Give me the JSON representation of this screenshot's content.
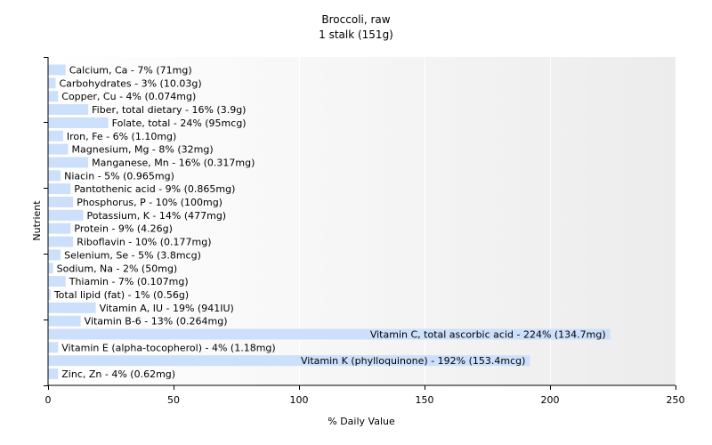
{
  "chart_data": {
    "type": "bar",
    "orientation": "horizontal",
    "title": "Broccoli, raw",
    "subtitle": "1 stalk (151g)",
    "xlabel": "% Daily Value",
    "ylabel": "Nutrient",
    "xlim": [
      0,
      250
    ],
    "xticks": [
      0,
      50,
      100,
      150,
      200,
      250
    ],
    "grid": "vertical",
    "bar_color": "#cce0fb",
    "categories": [
      "Calcium, Ca",
      "Carbohydrates",
      "Copper, Cu",
      "Fiber, total dietary",
      "Folate, total",
      "Iron, Fe",
      "Magnesium, Mg",
      "Manganese, Mn",
      "Niacin",
      "Pantothenic acid",
      "Phosphorus, P",
      "Potassium, K",
      "Protein",
      "Riboflavin",
      "Selenium, Se",
      "Sodium, Na",
      "Thiamin",
      "Total lipid (fat)",
      "Vitamin A, IU",
      "Vitamin B-6",
      "Vitamin C, total ascorbic acid",
      "Vitamin E (alpha-tocopherol)",
      "Vitamin K (phylloquinone)",
      "Zinc, Zn"
    ],
    "values": [
      7,
      3,
      4,
      16,
      24,
      6,
      8,
      16,
      5,
      9,
      10,
      14,
      9,
      10,
      5,
      2,
      7,
      1,
      19,
      13,
      224,
      4,
      192,
      4
    ],
    "labels": [
      "Calcium, Ca - 7% (71mg)",
      "Carbohydrates - 3% (10.03g)",
      "Copper, Cu - 4% (0.074mg)",
      "Fiber, total dietary - 16% (3.9g)",
      "Folate, total - 24% (95mcg)",
      "Iron, Fe - 6% (1.10mg)",
      "Magnesium, Mg - 8% (32mg)",
      "Manganese, Mn - 16% (0.317mg)",
      "Niacin - 5% (0.965mg)",
      "Pantothenic acid - 9% (0.865mg)",
      "Phosphorus, P - 10% (100mg)",
      "Potassium, K - 14% (477mg)",
      "Protein - 9% (4.26g)",
      "Riboflavin - 10% (0.177mg)",
      "Selenium, Se - 5% (3.8mcg)",
      "Sodium, Na - 2% (50mg)",
      "Thiamin - 7% (0.107mg)",
      "Total lipid (fat) - 1% (0.56g)",
      "Vitamin A, IU - 19% (941IU)",
      "Vitamin B-6 - 13% (0.264mg)",
      "Vitamin C, total ascorbic acid - 224% (134.7mg)",
      "Vitamin E (alpha-tocopherol) - 4% (1.18mg)",
      "Vitamin K (phylloquinone) - 192% (153.4mcg)",
      "Zinc, Zn - 4% (0.62mg)"
    ]
  }
}
